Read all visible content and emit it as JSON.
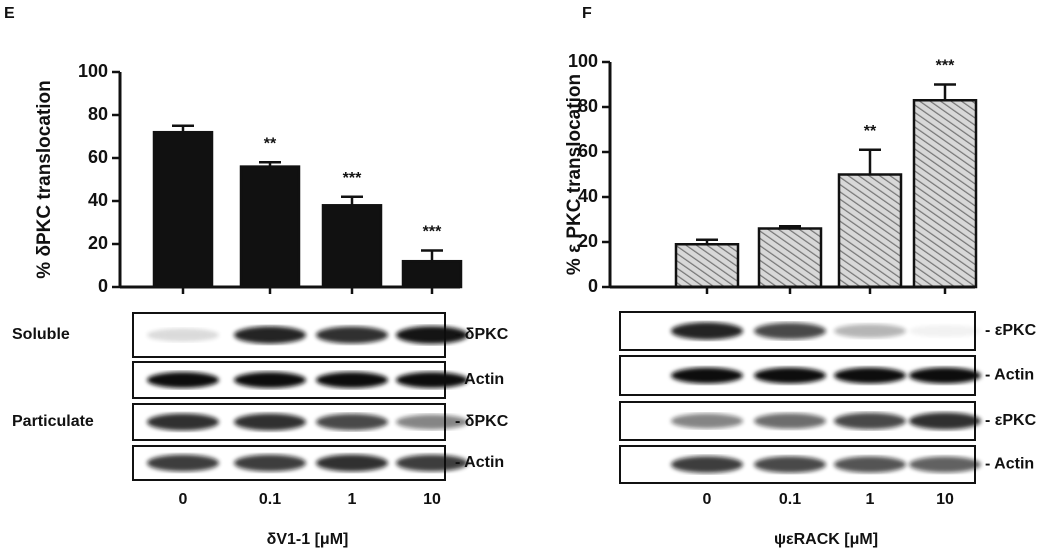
{
  "chart_data": [
    {
      "type": "bar",
      "panel": "E",
      "ylabel": "% δPKC translocation",
      "xlabel": "δV1-1 [μM]",
      "categories": [
        "0",
        "0.1",
        "1",
        "10"
      ],
      "values": [
        72,
        56,
        38,
        12
      ],
      "errors": [
        3,
        2,
        4,
        5
      ],
      "annotations": [
        null,
        "**",
        "***",
        "***"
      ],
      "color": "#111111",
      "hatch": false,
      "ylim": [
        0,
        100
      ],
      "yticks": [
        0,
        20,
        40,
        60,
        80,
        100
      ],
      "blot_groups": [
        "Soluble",
        "Particulate"
      ],
      "blot_rows": [
        "- δPKC",
        "- Actin",
        "- δPKC",
        "- Actin"
      ]
    },
    {
      "type": "bar",
      "panel": "F",
      "ylabel": "% ε PKC translocation",
      "xlabel": "ψεRACK [μM]",
      "categories": [
        "0",
        "0.1",
        "1",
        "10"
      ],
      "values": [
        19,
        26,
        50,
        83
      ],
      "errors": [
        2,
        1,
        11,
        7
      ],
      "annotations": [
        null,
        null,
        "**",
        "***"
      ],
      "color": "#a8a8a8",
      "hatch": true,
      "ylim": [
        0,
        100
      ],
      "yticks": [
        0,
        20,
        40,
        60,
        80,
        100
      ],
      "blot_rows": [
        "- εPKC",
        "- Actin",
        "- εPKC",
        "- Actin"
      ]
    }
  ]
}
